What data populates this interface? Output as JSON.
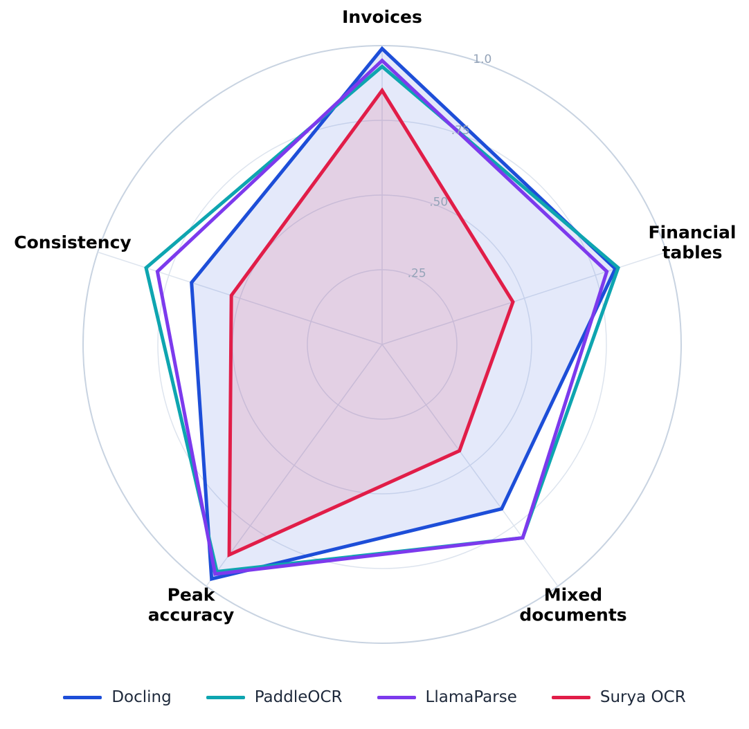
{
  "chart_data": {
    "type": "radar",
    "title": "",
    "axes": [
      "Invoices",
      "Financial\ntables",
      "Mixed\ndocuments",
      "Peak\naccuracy",
      "Consistency"
    ],
    "radial_range": [
      0,
      1
    ],
    "ticks": [
      {
        "value": 0.25,
        "label": ".25"
      },
      {
        "value": 0.5,
        "label": ".50"
      },
      {
        "value": 0.75,
        "label": ".75"
      },
      {
        "value": 1.0,
        "label": "1.0"
      }
    ],
    "grid": true,
    "legend_position": "bottom",
    "series": [
      {
        "name": "Docling",
        "color": "#1d4ed8",
        "values": [
          0.99,
          0.82,
          0.68,
          0.97,
          0.67
        ],
        "fill": true
      },
      {
        "name": "PaddleOCR",
        "color": "#0ea5b0",
        "values": [
          0.93,
          0.83,
          0.8,
          0.94,
          0.83
        ],
        "fill": false
      },
      {
        "name": "LlamaParse",
        "color": "#7c3aed",
        "values": [
          0.95,
          0.79,
          0.8,
          0.95,
          0.79
        ],
        "fill": false
      },
      {
        "name": "Surya OCR",
        "color": "#e11d48",
        "values": [
          0.85,
          0.46,
          0.44,
          0.87,
          0.53
        ],
        "fill": true
      }
    ]
  }
}
